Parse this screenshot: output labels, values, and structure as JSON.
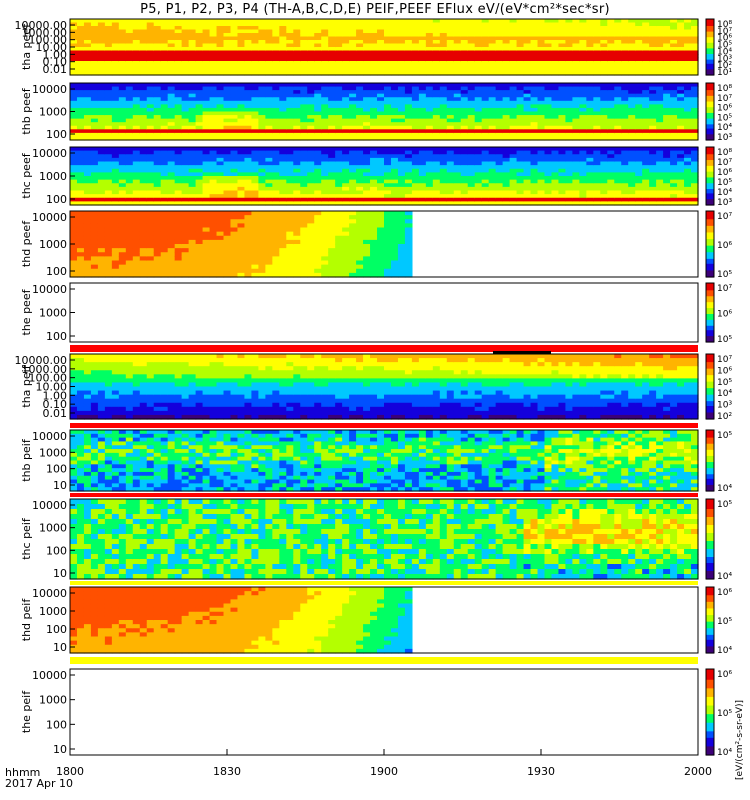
{
  "title": "P5, P1, P2, P3, P4 (TH-A,B,C,D,E) PEIF,PEEF EFlux eV/(eV*cm²*sec*sr)",
  "time_axis": {
    "label_line1": "hhmm",
    "label_line2": "2017 Apr 10",
    "ticks": [
      "1800",
      "1830",
      "1900",
      "1930",
      "2000"
    ],
    "tick_minutes": [
      0,
      30,
      60,
      90,
      120
    ],
    "range_minutes": [
      0,
      120
    ]
  },
  "colorbar_unit": "[eV/(cm²-s-sr-eV)]",
  "chart_data": [
    {
      "type": "heatmap",
      "probe": "tha",
      "species": "peef",
      "ylabel": "tha peef",
      "yticks": [
        "10000.00",
        "1000.00",
        "100.00",
        "10.00",
        "1.00",
        "0.10",
        "0.01"
      ],
      "ylog_range": [
        -2,
        4.4
      ],
      "cbar_ticks": [
        "10⁸",
        "10⁷",
        "10⁶",
        "10⁵",
        "10⁴",
        "10³",
        "10²",
        "10¹"
      ],
      "cbar_log_range": [
        1,
        8
      ],
      "data_end_minute": 120,
      "fill_below": [
        0.6,
        0.8
      ],
      "pattern": "hot_top"
    },
    {
      "type": "heatmap",
      "probe": "thb",
      "species": "peef",
      "ylabel": "thb peef",
      "yticks": [
        "10000",
        "1000",
        "100"
      ],
      "ylog_range": [
        1.3,
        4.3
      ],
      "cbar_ticks": [
        "10⁸",
        "10⁷",
        "10⁶",
        "10⁵",
        "10⁴",
        "10³"
      ],
      "cbar_log_range": [
        3,
        8
      ],
      "data_end_minute": 120,
      "fill_below": [
        0.82,
        0.92
      ],
      "pattern": "cold_top"
    },
    {
      "type": "heatmap",
      "probe": "thc",
      "species": "peef",
      "ylabel": "thc peef",
      "yticks": [
        "10000",
        "1000",
        "100"
      ],
      "ylog_range": [
        1.3,
        4.3
      ],
      "cbar_ticks": [
        "10⁸",
        "10⁷",
        "10⁶",
        "10⁵",
        "10⁴",
        "10³"
      ],
      "cbar_log_range": [
        3,
        8
      ],
      "data_end_minute": 120,
      "fill_below": [
        0.87,
        0.95
      ],
      "pattern": "cold_top"
    },
    {
      "type": "heatmap",
      "probe": "thd",
      "species": "peef",
      "ylabel": "thd peef",
      "yticks": [
        "10000",
        "1000",
        "100"
      ],
      "ylog_range": [
        1.3,
        4.3
      ],
      "cbar_ticks": [
        "10⁷",
        "10⁶",
        "10⁵"
      ],
      "cbar_log_range": [
        4,
        8
      ],
      "data_end_minute": 65,
      "pattern": "fade"
    },
    {
      "type": "heatmap",
      "probe": "the",
      "species": "peef",
      "ylabel": "the peef",
      "yticks": [
        "10000",
        "1000",
        "100"
      ],
      "ylog_range": [
        1.3,
        4.3
      ],
      "cbar_ticks": [
        "10⁷",
        "10⁶",
        "10⁵"
      ],
      "cbar_log_range": [
        4,
        8
      ],
      "data_end_minute": 0,
      "pattern": "empty"
    },
    {
      "type": "heatmap",
      "probe": "tha",
      "species": "peif",
      "ylabel": "tha peif",
      "yticks": [
        "10000.00",
        "1000.00",
        "100.00",
        "10.00",
        "1.00",
        "0.10",
        "0.01"
      ],
      "ylog_range": [
        -2,
        4.4
      ],
      "cbar_ticks": [
        "10⁷",
        "10⁶",
        "10⁵",
        "10⁴",
        "10³",
        "10²"
      ],
      "cbar_log_range": [
        1,
        8
      ],
      "data_end_minute": 120,
      "pattern": "ion_low"
    },
    {
      "type": "heatmap",
      "probe": "thb",
      "species": "peif",
      "ylabel": "thb peif",
      "yticks": [
        "10000",
        "1000",
        "100",
        "10"
      ],
      "ylog_range": [
        0.8,
        4.3
      ],
      "cbar_ticks": [
        "10⁵",
        "10⁴"
      ],
      "cbar_log_range": [
        3,
        6
      ],
      "data_end_minute": 120,
      "pattern": "ion_noise"
    },
    {
      "type": "heatmap",
      "probe": "thc",
      "species": "peif",
      "ylabel": "thc peif",
      "yticks": [
        "10000",
        "1000",
        "100",
        "10"
      ],
      "ylog_range": [
        0.8,
        4.3
      ],
      "cbar_ticks": [
        "10⁵",
        "10⁴"
      ],
      "cbar_log_range": [
        3,
        6
      ],
      "data_end_minute": 120,
      "pattern": "ion_noise_hot"
    },
    {
      "type": "heatmap",
      "probe": "thd",
      "species": "peif",
      "ylabel": "thd peif",
      "yticks": [
        "10000",
        "1000",
        "100",
        "10"
      ],
      "ylog_range": [
        0.8,
        4.3
      ],
      "cbar_ticks": [
        "10⁶",
        "10⁵",
        "10⁴"
      ],
      "cbar_log_range": [
        3,
        7
      ],
      "data_end_minute": 65,
      "pattern": "fade"
    },
    {
      "type": "heatmap",
      "probe": "the",
      "species": "peif",
      "ylabel": "the peif",
      "yticks": [
        "10000",
        "1000",
        "100",
        "10"
      ],
      "ylog_range": [
        0.8,
        4.3
      ],
      "cbar_ticks": [
        "10⁶",
        "10⁵",
        "10⁴"
      ],
      "cbar_log_range": [
        3,
        7
      ],
      "data_end_minute": 0,
      "pattern": "empty"
    }
  ],
  "colors": {
    "rainbow": [
      "#3c0078",
      "#1400dc",
      "#0050ff",
      "#00c8ff",
      "#00ff64",
      "#b4ff00",
      "#ffff00",
      "#ffb400",
      "#ff5000",
      "#e60000",
      "#b40000"
    ],
    "separator_red": "#ff0000",
    "separator_yellow": "#ffff00"
  }
}
